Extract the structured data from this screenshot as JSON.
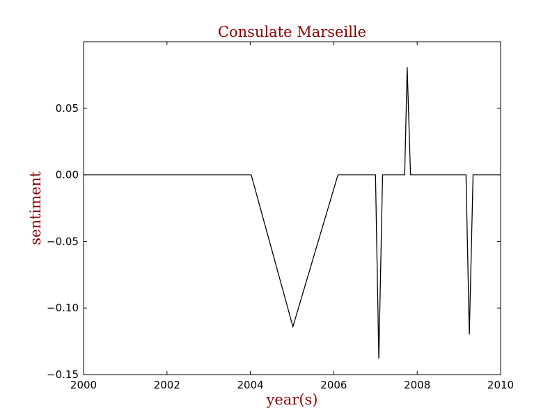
{
  "chart_data": {
    "type": "line",
    "title": "Consulate Marseille",
    "xlabel": "year(s)",
    "ylabel": "sentiment",
    "xlim": [
      2000,
      2010
    ],
    "ylim": [
      -0.15,
      0.1
    ],
    "xticks": [
      2000,
      2002,
      2004,
      2006,
      2008,
      2010
    ],
    "xtick_labels": [
      "2000",
      "2002",
      "2004",
      "2006",
      "2008",
      "2010"
    ],
    "yticks": [
      -0.15,
      -0.1,
      -0.05,
      0.0,
      0.05
    ],
    "ytick_labels": [
      "−0.15",
      "−0.10",
      "−0.05",
      "0.00",
      "0.05"
    ],
    "grid": false,
    "series": [
      {
        "color": "#000000",
        "x": [
          2000.0,
          2004.02,
          2005.02,
          2006.1,
          2007.0,
          2007.08,
          2007.17,
          2007.7,
          2007.76,
          2007.84,
          2009.17,
          2009.25,
          2009.34,
          2010.0
        ],
        "y": [
          0.0,
          0.0,
          -0.114,
          0.0,
          0.0,
          -0.138,
          0.0,
          0.0,
          0.081,
          0.0,
          0.0,
          -0.12,
          0.0,
          0.0
        ]
      }
    ],
    "colors": {
      "title": "#8b0000",
      "axis_label": "#8b0000",
      "line": "#000000"
    }
  }
}
